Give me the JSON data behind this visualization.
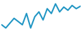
{
  "y_values": [
    22,
    18,
    24,
    30,
    26,
    22,
    36,
    18,
    32,
    38,
    28,
    42,
    36,
    48,
    38,
    44,
    40,
    46,
    42,
    45
  ],
  "line_color": "#2196c4",
  "line_width": 1.5,
  "background_color": "#ffffff",
  "fill_alpha": 0.0,
  "ylim_min": 15,
  "ylim_max": 52
}
